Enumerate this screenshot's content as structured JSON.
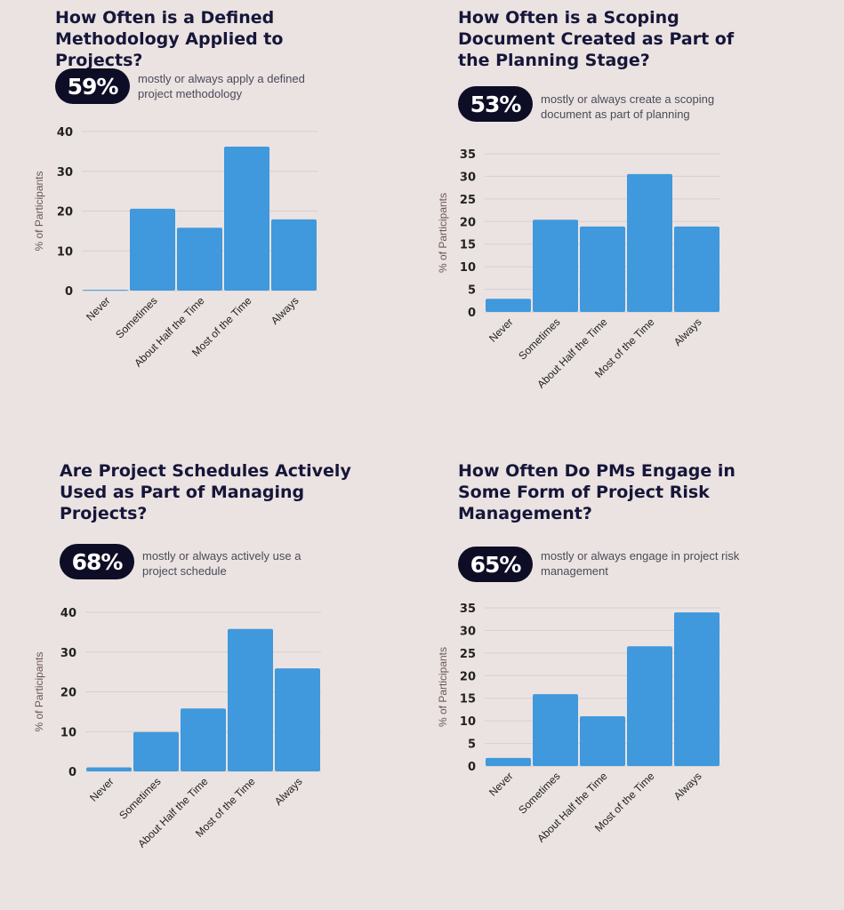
{
  "colors": {
    "background": "#ebe3e1",
    "bar": "#4098dd",
    "badge": "#0e0d26",
    "title": "#16163a",
    "grid": "#d6cfcd"
  },
  "chart_data": [
    {
      "type": "bar",
      "title": "How Often is a Defined Methodology Applied to Projects?",
      "badge": "59%",
      "description": "mostly or always apply a defined project methodology",
      "categories": [
        "Never",
        "Sometimes",
        "About Half the Time",
        "Most of the Time",
        "Always"
      ],
      "values": [
        0.2,
        20.6,
        15.8,
        36.2,
        17.9
      ],
      "xlabel": "",
      "ylabel": "% of Participants",
      "ylim": [
        0,
        40
      ],
      "yticks": [
        0,
        10,
        20,
        30,
        40
      ],
      "grid": true
    },
    {
      "type": "bar",
      "title": "How Often is a Scoping Document Created as Part of the Planning Stage?",
      "badge": "53%",
      "description": "mostly or always create a scoping document as part of planning",
      "categories": [
        "Never",
        "Sometimes",
        "About Half the Time",
        "Most of the Time",
        "Always"
      ],
      "values": [
        2.9,
        20.4,
        18.9,
        30.5,
        18.9
      ],
      "xlabel": "",
      "ylabel": "% of Participants",
      "ylim": [
        0,
        35
      ],
      "yticks": [
        0,
        5,
        10,
        15,
        20,
        25,
        30,
        35
      ],
      "grid": true
    },
    {
      "type": "bar",
      "title": "Are Project Schedules Actively Used as Part of Managing Projects?",
      "badge": "68%",
      "description": "mostly or always actively use a project schedule",
      "categories": [
        "Never",
        "Sometimes",
        "About Half the Time",
        "Most of the Time",
        "Always"
      ],
      "values": [
        1,
        9.9,
        15.8,
        35.8,
        25.9
      ],
      "xlabel": "",
      "ylabel": "% of Participants",
      "ylim": [
        0,
        40
      ],
      "yticks": [
        0,
        10,
        20,
        30,
        40
      ],
      "grid": true
    },
    {
      "type": "bar",
      "title": "How Often Do PMs Engage in Some Form of Project Risk Management?",
      "badge": "65%",
      "description": "mostly or always engage in project risk management",
      "categories": [
        "Never",
        "Sometimes",
        "About Half the Time",
        "Most of the Time",
        "Always"
      ],
      "values": [
        1.8,
        15.9,
        11,
        26.5,
        34
      ],
      "xlabel": "",
      "ylabel": "% of Participants",
      "ylim": [
        0,
        35
      ],
      "yticks": [
        0,
        5,
        10,
        15,
        20,
        25,
        30,
        35
      ],
      "grid": true
    }
  ]
}
